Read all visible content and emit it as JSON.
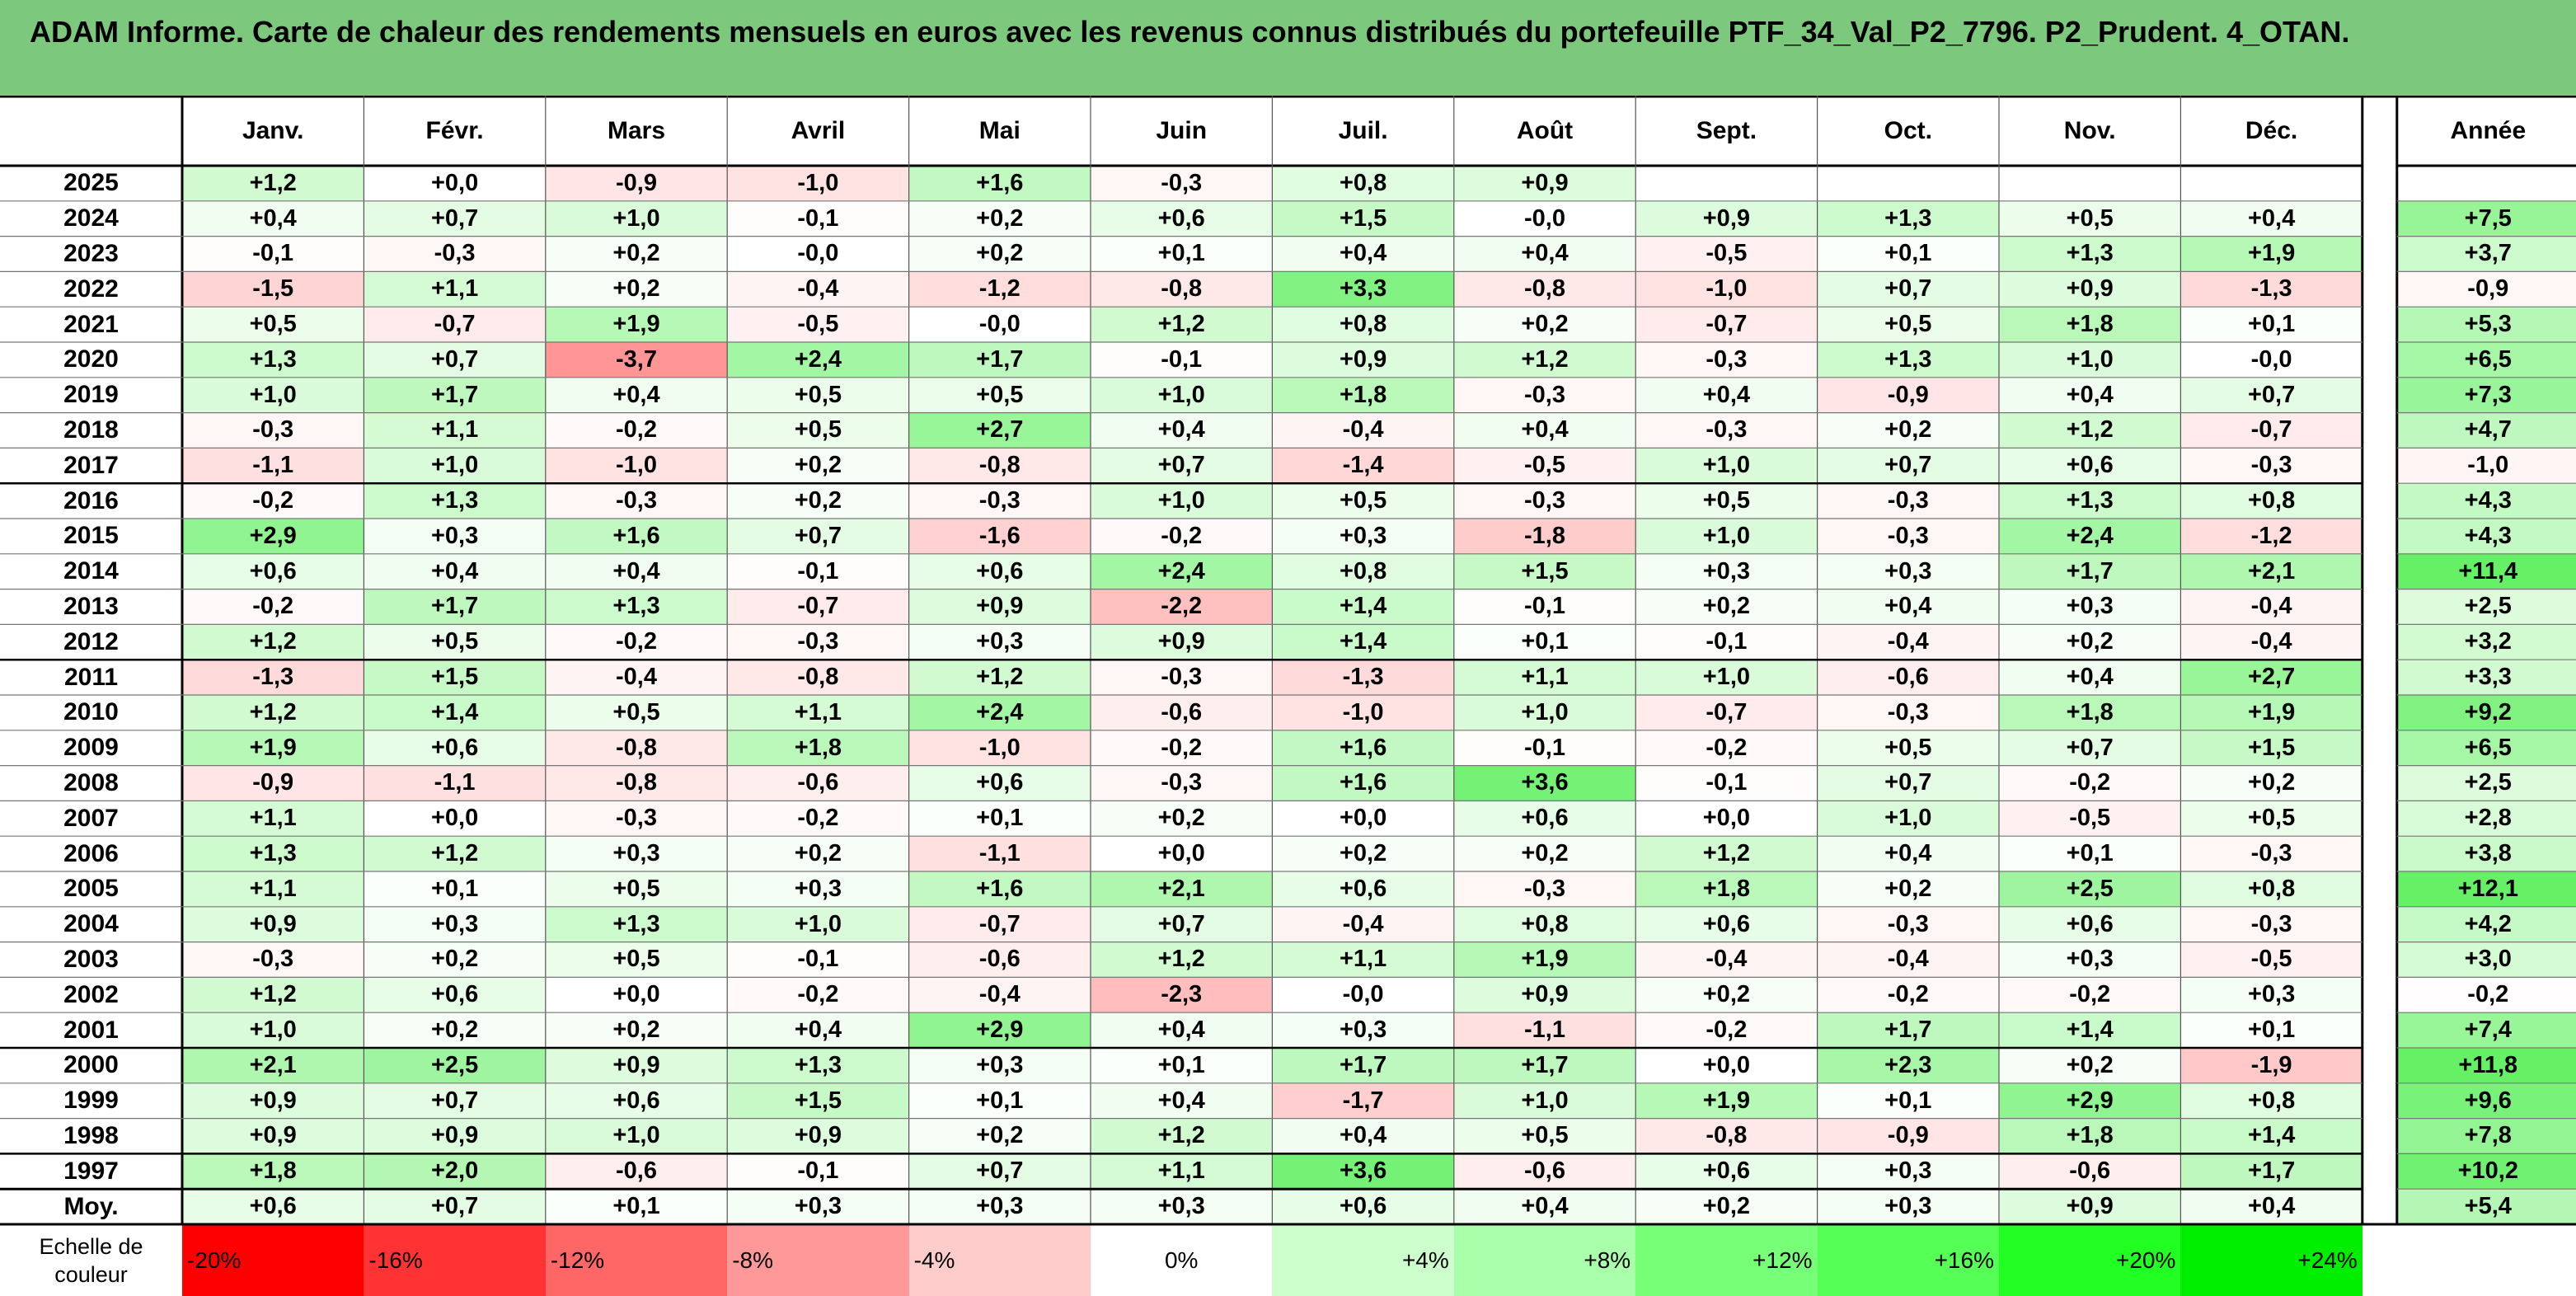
{
  "title": "ADAM Informe. Carte de chaleur des rendements mensuels en euros avec les revenus connus distribués du portefeuille PTF_34_Val_P2_7796. P2_Prudent. 4_OTAN.",
  "header": {
    "months": [
      "Janv.",
      "Févr.",
      "Mars",
      "Avril",
      "Mai",
      "Juin",
      "Juil.",
      "Août",
      "Sept.",
      "Oct.",
      "Nov.",
      "Déc."
    ],
    "year_col": "Année"
  },
  "rows": [
    {
      "year": "2025",
      "months": [
        "+1,2",
        "+0,0",
        "-0,9",
        "-1,0",
        "+1,6",
        "-0,3",
        "+0,8",
        "+0,9",
        "",
        "",
        "",
        ""
      ],
      "annual": ""
    },
    {
      "year": "2024",
      "months": [
        "+0,4",
        "+0,7",
        "+1,0",
        "-0,1",
        "+0,2",
        "+0,6",
        "+1,5",
        "-0,0",
        "+0,9",
        "+1,3",
        "+0,5",
        "+0,4"
      ],
      "annual": "+7,5"
    },
    {
      "year": "2023",
      "months": [
        "-0,1",
        "-0,3",
        "+0,2",
        "-0,0",
        "+0,2",
        "+0,1",
        "+0,4",
        "+0,4",
        "-0,5",
        "+0,1",
        "+1,3",
        "+1,9"
      ],
      "annual": "+3,7"
    },
    {
      "year": "2022",
      "months": [
        "-1,5",
        "+1,1",
        "+0,2",
        "-0,4",
        "-1,2",
        "-0,8",
        "+3,3",
        "-0,8",
        "-1,0",
        "+0,7",
        "+0,9",
        "-1,3"
      ],
      "annual": "-0,9"
    },
    {
      "year": "2021",
      "months": [
        "+0,5",
        "-0,7",
        "+1,9",
        "-0,5",
        "-0,0",
        "+1,2",
        "+0,8",
        "+0,2",
        "-0,7",
        "+0,5",
        "+1,8",
        "+0,1"
      ],
      "annual": "+5,3"
    },
    {
      "year": "2020",
      "months": [
        "+1,3",
        "+0,7",
        "-3,7",
        "+2,4",
        "+1,7",
        "-0,1",
        "+0,9",
        "+1,2",
        "-0,3",
        "+1,3",
        "+1,0",
        "-0,0"
      ],
      "annual": "+6,5"
    },
    {
      "year": "2019",
      "months": [
        "+1,0",
        "+1,7",
        "+0,4",
        "+0,5",
        "+0,5",
        "+1,0",
        "+1,8",
        "-0,3",
        "+0,4",
        "-0,9",
        "+0,4",
        "+0,7"
      ],
      "annual": "+7,3"
    },
    {
      "year": "2018",
      "months": [
        "-0,3",
        "+1,1",
        "-0,2",
        "+0,5",
        "+2,7",
        "+0,4",
        "-0,4",
        "+0,4",
        "-0,3",
        "+0,2",
        "+1,2",
        "-0,7"
      ],
      "annual": "+4,7"
    },
    {
      "year": "2017",
      "months": [
        "-1,1",
        "+1,0",
        "-1,0",
        "+0,2",
        "-0,8",
        "+0,7",
        "-1,4",
        "-0,5",
        "+1,0",
        "+0,7",
        "+0,6",
        "-0,3"
      ],
      "annual": "-1,0"
    },
    {
      "year": "2016",
      "months": [
        "-0,2",
        "+1,3",
        "-0,3",
        "+0,2",
        "-0,3",
        "+1,0",
        "+0,5",
        "-0,3",
        "+0,5",
        "-0,3",
        "+1,3",
        "+0,8"
      ],
      "annual": "+4,3"
    },
    {
      "year": "2015",
      "months": [
        "+2,9",
        "+0,3",
        "+1,6",
        "+0,7",
        "-1,6",
        "-0,2",
        "+0,3",
        "-1,8",
        "+1,0",
        "-0,3",
        "+2,4",
        "-1,2"
      ],
      "annual": "+4,3"
    },
    {
      "year": "2014",
      "months": [
        "+0,6",
        "+0,4",
        "+0,4",
        "-0,1",
        "+0,6",
        "+2,4",
        "+0,8",
        "+1,5",
        "+0,3",
        "+0,3",
        "+1,7",
        "+2,1"
      ],
      "annual": "+11,4"
    },
    {
      "year": "2013",
      "months": [
        "-0,2",
        "+1,7",
        "+1,3",
        "-0,7",
        "+0,9",
        "-2,2",
        "+1,4",
        "-0,1",
        "+0,2",
        "+0,4",
        "+0,3",
        "-0,4"
      ],
      "annual": "+2,5"
    },
    {
      "year": "2012",
      "months": [
        "+1,2",
        "+0,5",
        "-0,2",
        "-0,3",
        "+0,3",
        "+0,9",
        "+1,4",
        "+0,1",
        "-0,1",
        "-0,4",
        "+0,2",
        "-0,4"
      ],
      "annual": "+3,2"
    },
    {
      "year": "2011",
      "months": [
        "-1,3",
        "+1,5",
        "-0,4",
        "-0,8",
        "+1,2",
        "-0,3",
        "-1,3",
        "+1,1",
        "+1,0",
        "-0,6",
        "+0,4",
        "+2,7"
      ],
      "annual": "+3,3"
    },
    {
      "year": "2010",
      "months": [
        "+1,2",
        "+1,4",
        "+0,5",
        "+1,1",
        "+2,4",
        "-0,6",
        "-1,0",
        "+1,0",
        "-0,7",
        "-0,3",
        "+1,8",
        "+1,9"
      ],
      "annual": "+9,2"
    },
    {
      "year": "2009",
      "months": [
        "+1,9",
        "+0,6",
        "-0,8",
        "+1,8",
        "-1,0",
        "-0,2",
        "+1,6",
        "-0,1",
        "-0,2",
        "+0,5",
        "+0,7",
        "+1,5"
      ],
      "annual": "+6,5"
    },
    {
      "year": "2008",
      "months": [
        "-0,9",
        "-1,1",
        "-0,8",
        "-0,6",
        "+0,6",
        "-0,3",
        "+1,6",
        "+3,6",
        "-0,1",
        "+0,7",
        "-0,2",
        "+0,2"
      ],
      "annual": "+2,5"
    },
    {
      "year": "2007",
      "months": [
        "+1,1",
        "+0,0",
        "-0,3",
        "-0,2",
        "+0,1",
        "+0,2",
        "+0,0",
        "+0,6",
        "+0,0",
        "+1,0",
        "-0,5",
        "+0,5"
      ],
      "annual": "+2,8"
    },
    {
      "year": "2006",
      "months": [
        "+1,3",
        "+1,2",
        "+0,3",
        "+0,2",
        "-1,1",
        "+0,0",
        "+0,2",
        "+0,2",
        "+1,2",
        "+0,4",
        "+0,1",
        "-0,3"
      ],
      "annual": "+3,8"
    },
    {
      "year": "2005",
      "months": [
        "+1,1",
        "+0,1",
        "+0,5",
        "+0,3",
        "+1,6",
        "+2,1",
        "+0,6",
        "-0,3",
        "+1,8",
        "+0,2",
        "+2,5",
        "+0,8"
      ],
      "annual": "+12,1"
    },
    {
      "year": "2004",
      "months": [
        "+0,9",
        "+0,3",
        "+1,3",
        "+1,0",
        "-0,7",
        "+0,7",
        "-0,4",
        "+0,8",
        "+0,6",
        "-0,3",
        "+0,6",
        "-0,3"
      ],
      "annual": "+4,2"
    },
    {
      "year": "2003",
      "months": [
        "-0,3",
        "+0,2",
        "+0,5",
        "-0,1",
        "-0,6",
        "+1,2",
        "+1,1",
        "+1,9",
        "-0,4",
        "-0,4",
        "+0,3",
        "-0,5"
      ],
      "annual": "+3,0"
    },
    {
      "year": "2002",
      "months": [
        "+1,2",
        "+0,6",
        "+0,0",
        "-0,2",
        "-0,4",
        "-2,3",
        "-0,0",
        "+0,9",
        "+0,2",
        "-0,2",
        "-0,2",
        "+0,3"
      ],
      "annual": "-0,2"
    },
    {
      "year": "2001",
      "months": [
        "+1,0",
        "+0,2",
        "+0,2",
        "+0,4",
        "+2,9",
        "+0,4",
        "+0,3",
        "-1,1",
        "-0,2",
        "+1,7",
        "+1,4",
        "+0,1"
      ],
      "annual": "+7,4"
    },
    {
      "year": "2000",
      "months": [
        "+2,1",
        "+2,5",
        "+0,9",
        "+1,3",
        "+0,3",
        "+0,1",
        "+1,7",
        "+1,7",
        "+0,0",
        "+2,3",
        "+0,2",
        "-1,9"
      ],
      "annual": "+11,8"
    },
    {
      "year": "1999",
      "months": [
        "+0,9",
        "+0,7",
        "+0,6",
        "+1,5",
        "+0,1",
        "+0,4",
        "-1,7",
        "+1,0",
        "+1,9",
        "+0,1",
        "+2,9",
        "+0,8"
      ],
      "annual": "+9,6"
    },
    {
      "year": "1998",
      "months": [
        "+0,9",
        "+0,9",
        "+1,0",
        "+0,9",
        "+0,2",
        "+1,2",
        "+0,4",
        "+0,5",
        "-0,8",
        "-0,9",
        "+1,8",
        "+1,4"
      ],
      "annual": "+7,8"
    },
    {
      "year": "1997",
      "months": [
        "+1,8",
        "+2,0",
        "-0,6",
        "-0,1",
        "+0,7",
        "+1,1",
        "+3,6",
        "-0,6",
        "+0,6",
        "+0,3",
        "-0,6",
        "+1,7"
      ],
      "annual": "+10,2"
    }
  ],
  "average": {
    "label": "Moy.",
    "months": [
      "+0,6",
      "+0,7",
      "+0,1",
      "+0,3",
      "+0,3",
      "+0,3",
      "+0,6",
      "+0,4",
      "+0,2",
      "+0,3",
      "+0,9",
      "+0,4"
    ],
    "annual": "+5,4"
  },
  "legend": {
    "label": "Echelle de couleur",
    "steps": [
      {
        "label": "-20%",
        "color": "#ff0000"
      },
      {
        "label": "-16%",
        "color": "#ff3333"
      },
      {
        "label": "-12%",
        "color": "#ff6666"
      },
      {
        "label": "-8%",
        "color": "#ff9999"
      },
      {
        "label": "-4%",
        "color": "#ffcccc"
      },
      {
        "label": "0%",
        "color": "#ffffff"
      },
      {
        "label": "+4%",
        "color": "#ccffcc"
      },
      {
        "label": "+8%",
        "color": "#aaffaa"
      },
      {
        "label": "+12%",
        "color": "#77ff77"
      },
      {
        "label": "+16%",
        "color": "#55ff55"
      },
      {
        "label": "+20%",
        "color": "#22ff22"
      },
      {
        "label": "+24%",
        "color": "#00ee00"
      }
    ]
  },
  "colors": {
    "title_bg": "#7cc97e",
    "positive_max": "#55ee55",
    "negative_max": "#ff9999",
    "border": "#000000"
  }
}
